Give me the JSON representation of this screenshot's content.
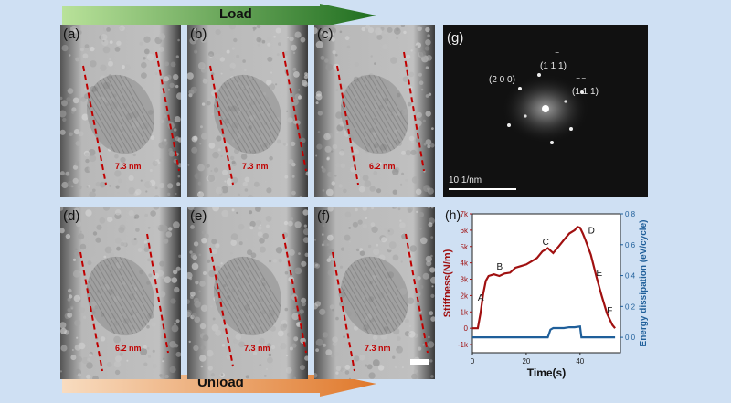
{
  "arrows": {
    "top_label": "Load",
    "bottom_label": "Unload"
  },
  "panels": [
    {
      "label": "(a)",
      "width": "7.3 nm"
    },
    {
      "label": "(b)",
      "width": "7.3 nm"
    },
    {
      "label": "(c)",
      "width": "6.2 nm"
    },
    {
      "label": "(d)",
      "width": "6.2 nm"
    },
    {
      "label": "(e)",
      "width": "7.3 nm"
    },
    {
      "label": "(f)",
      "width": "7.3 nm"
    }
  ],
  "fft": {
    "label": "(g)",
    "spot1": "(2 0 0)",
    "spot2": "(1 1 1)",
    "spot2_bar": "‾",
    "spot3": "(1 1 1)",
    "spot3_bar": "‾ ‾",
    "scale": "10 1/nm"
  },
  "colors": {
    "stiffness": "#a01010",
    "energy": "#1f5f9a",
    "dash": "#c00000"
  },
  "chart_data": {
    "type": "line",
    "panel_label": "(h)",
    "xlabel": "Time(s)",
    "ylabel_left": "Stiffness(N/m)",
    "ylabel_right": "Energy dissipation (eV/cycle)",
    "x_ticks": [
      "0",
      "20",
      "40"
    ],
    "y_left_ticks": [
      "-1k",
      "0",
      "1k",
      "2k",
      "3k",
      "4k",
      "5k",
      "6k",
      "7k"
    ],
    "y_right_ticks": [
      "0.0",
      "0.2",
      "0.4",
      "0.6",
      "0.8"
    ],
    "xlim": [
      0,
      55
    ],
    "ylim_left": [
      -1500,
      7000
    ],
    "ylim_right": [
      -0.1,
      0.8
    ],
    "point_labels": [
      {
        "text": "A",
        "x": 2,
        "y": 1700
      },
      {
        "text": "B",
        "x": 9,
        "y": 3600
      },
      {
        "text": "C",
        "x": 26,
        "y": 5100
      },
      {
        "text": "D",
        "x": 43,
        "y": 5800
      },
      {
        "text": "E",
        "x": 46,
        "y": 3200
      },
      {
        "text": "F",
        "x": 50,
        "y": 900
      }
    ],
    "series": [
      {
        "name": "Stiffness",
        "axis": "left",
        "x": [
          0,
          2,
          3,
          4,
          5,
          6,
          8,
          10,
          12,
          14,
          16,
          18,
          20,
          22,
          24,
          26,
          28,
          30,
          32,
          34,
          36,
          38,
          39,
          40,
          41,
          42,
          44,
          46,
          48,
          50,
          52,
          53
        ],
        "y": [
          0,
          0,
          900,
          2100,
          2900,
          3200,
          3300,
          3200,
          3350,
          3400,
          3700,
          3800,
          3900,
          4100,
          4300,
          4700,
          4900,
          4600,
          5000,
          5400,
          5800,
          6000,
          6200,
          6150,
          5800,
          5400,
          4500,
          3200,
          2000,
          900,
          200,
          0
        ]
      },
      {
        "name": "Energy dissipation",
        "axis": "right",
        "x": [
          0,
          28,
          29,
          30,
          32,
          34,
          36,
          38,
          40,
          40.5,
          41,
          53
        ],
        "y": [
          0.0,
          0.0,
          0.05,
          0.06,
          0.06,
          0.06,
          0.065,
          0.065,
          0.07,
          0.0,
          0.0,
          0.0
        ]
      }
    ]
  }
}
